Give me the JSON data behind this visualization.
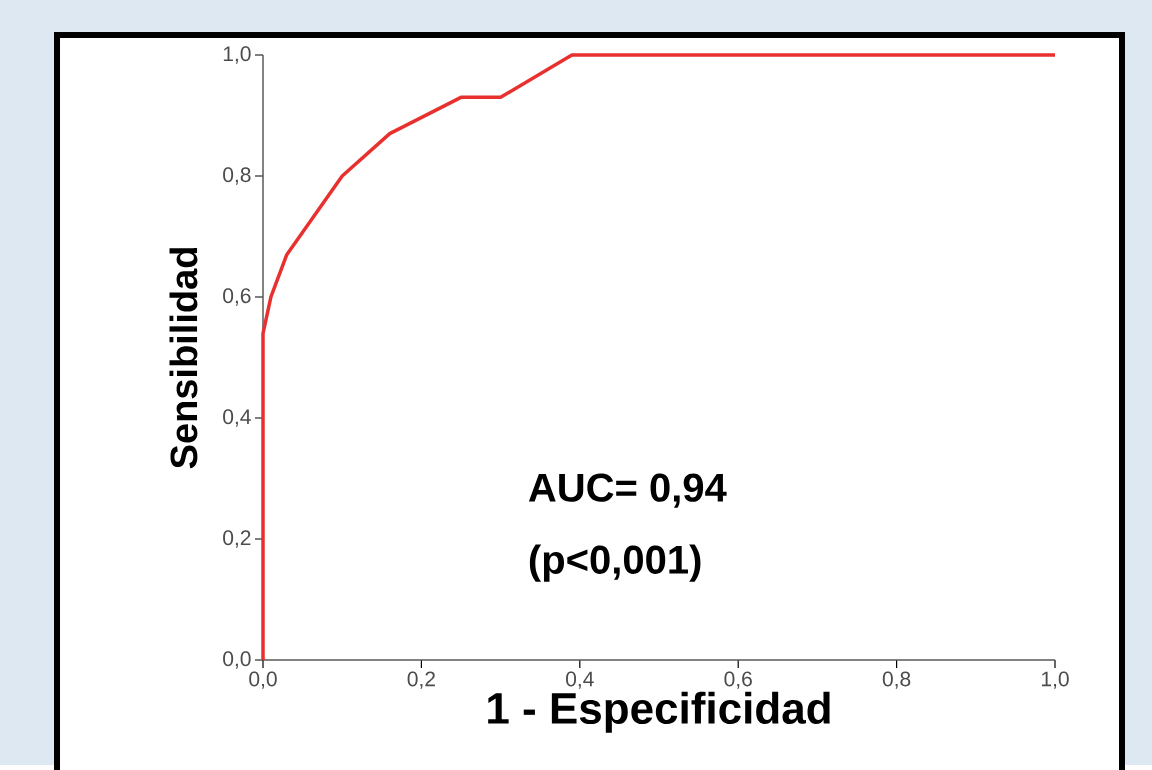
{
  "chart_data": {
    "type": "line",
    "xlabel": "1 - Especificidad",
    "ylabel": "Sensibilidad",
    "annotations": [
      "AUC= 0,94",
      "(p<0,001)"
    ],
    "series": [
      {
        "color": "#e8312f",
        "x": [
          0,
          0,
          0.01,
          0.03,
          0.1,
          0.16,
          0.25,
          0.3,
          0.39,
          1
        ],
        "values": [
          0,
          0.54,
          0.6,
          0.67,
          0.8,
          0.87,
          0.93,
          0.93,
          1,
          1
        ]
      }
    ],
    "xlim": [
      0,
      1
    ],
    "ylim": [
      0,
      1
    ],
    "xticks": [
      {
        "value": 0,
        "label": "0,0"
      },
      {
        "value": 0.2,
        "label": "0,2"
      },
      {
        "value": 0.4,
        "label": "0,4"
      },
      {
        "value": 0.6,
        "label": "0,6"
      },
      {
        "value": 0.8,
        "label": "0,8"
      },
      {
        "value": 1,
        "label": "1,0"
      }
    ],
    "yticks": [
      {
        "value": 0,
        "label": "0,0"
      },
      {
        "value": 0.2,
        "label": "0,2"
      },
      {
        "value": 0.4,
        "label": "0,4"
      },
      {
        "value": 0.6,
        "label": "0,6"
      },
      {
        "value": 0.8,
        "label": "0,8"
      },
      {
        "value": 1,
        "label": "1,0"
      }
    ],
    "line_style": "solid"
  }
}
